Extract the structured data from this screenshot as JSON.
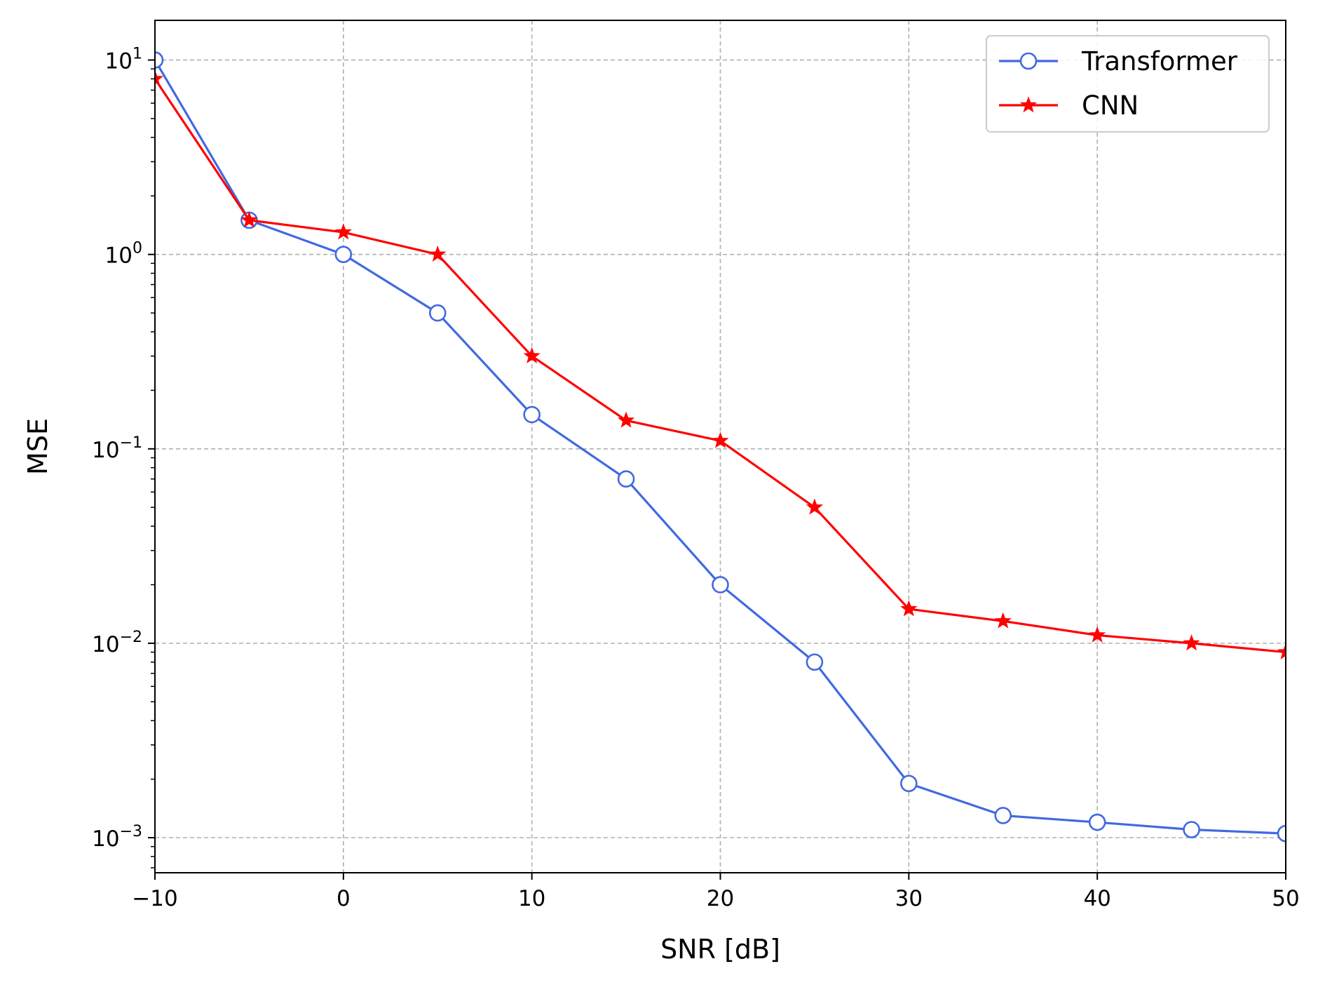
{
  "chart_data": {
    "type": "line",
    "title": "",
    "xlabel": "SNR [dB]",
    "ylabel": "MSE",
    "xscale": "linear",
    "yscale": "log",
    "xlim": [
      -10,
      50
    ],
    "ylim": [
      0.00066,
      16
    ],
    "grid": true,
    "legend_position": "top-right",
    "x": [
      -10,
      -5,
      0,
      5,
      10,
      15,
      20,
      25,
      30,
      35,
      40,
      45,
      50
    ],
    "x_ticks": [
      -10,
      0,
      10,
      20,
      30,
      40,
      50
    ],
    "x_tick_labels": [
      "−10",
      "0",
      "10",
      "20",
      "30",
      "40",
      "50"
    ],
    "y_ticks": [
      {
        "value": 10,
        "base": "10",
        "exp": "1"
      },
      {
        "value": 1,
        "base": "10",
        "exp": "0"
      },
      {
        "value": 0.1,
        "base": "10",
        "exp": "−1"
      },
      {
        "value": 0.01,
        "base": "10",
        "exp": "−2"
      },
      {
        "value": 0.001,
        "base": "10",
        "exp": "−3"
      }
    ],
    "series": [
      {
        "name": "Transformer",
        "color": "#4169e1",
        "marker": "circle-open",
        "values": [
          10,
          1.5,
          1.0,
          0.5,
          0.15,
          0.07,
          0.02,
          0.008,
          0.0019,
          0.0013,
          0.0012,
          0.0011,
          0.00105
        ]
      },
      {
        "name": "CNN",
        "color": "#ff0000",
        "marker": "star",
        "values": [
          8,
          1.5,
          1.3,
          1.0,
          0.3,
          0.14,
          0.11,
          0.05,
          0.015,
          0.013,
          0.011,
          0.01,
          0.009
        ]
      }
    ]
  }
}
